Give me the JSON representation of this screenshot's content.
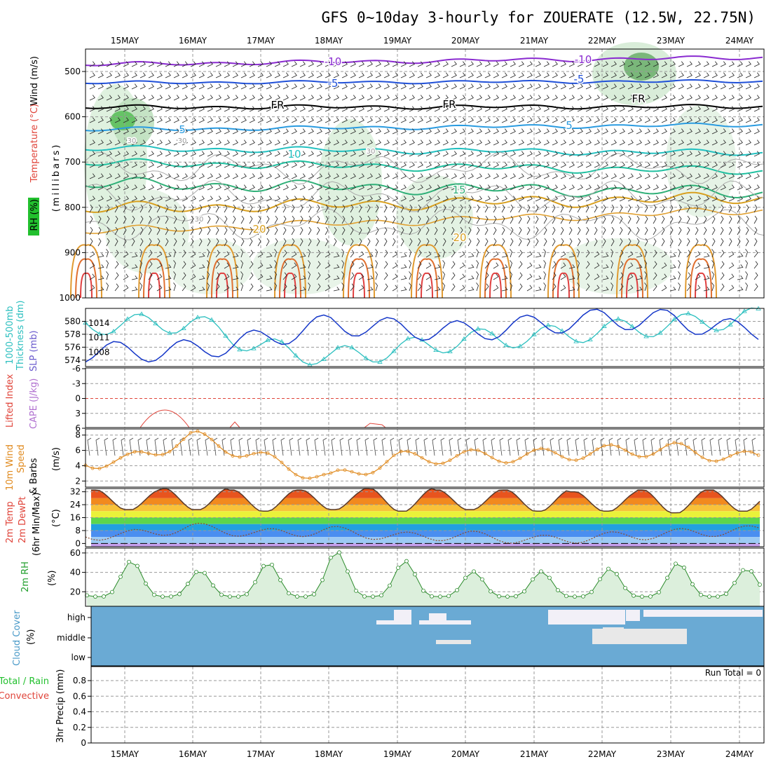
{
  "title": "GFS 0~10day 3-hourly for ZOUERATE (12.5W, 22.75N)",
  "dates": [
    "15MAY",
    "16MAY",
    "17MAY",
    "18MAY",
    "19MAY",
    "20MAY",
    "21MAY",
    "22MAY",
    "23MAY",
    "24MAY"
  ],
  "colors": {
    "temp_red": "#e0443a",
    "rh_green": "#22c02e",
    "thickness_cyan": "#2bbfbf",
    "slp_blue": "#1436c8",
    "cape_purple": "#b070d0",
    "wind_orange": "#e08a1e",
    "cloud_blue": "#6aaad4",
    "frz_black": "#000000"
  },
  "panels": {
    "upper": {
      "ylabel_lines": [
        "Wind (m/s)",
        "Temperature (°C)",
        "RH (%)"
      ],
      "yaxis_title": "(millibars)",
      "ticks": [
        "500",
        "600",
        "700",
        "800",
        "900",
        "1000"
      ],
      "contour_labels": [
        "-10",
        "-5",
        "FR",
        "5",
        "10",
        "15",
        "20",
        "30"
      ]
    },
    "thickness": {
      "ylabel_lines": [
        "1000-500mb",
        "Thickness (dm)",
        "SLP (mb)"
      ],
      "left_ticks": [
        "580",
        "578",
        "576",
        "574"
      ],
      "right_ticks": [
        "1014",
        "1011",
        "1008"
      ]
    },
    "cape": {
      "ylabel_lines": [
        "Lifted Index",
        "CAPE (J/kg)"
      ],
      "ticks": [
        "-6",
        "-3",
        "0",
        "3",
        "6"
      ]
    },
    "wind10": {
      "ylabel_lines": [
        "10m Wind",
        "Speed",
        "& Barbs",
        "(m/s)"
      ],
      "ticks": [
        "8",
        "6",
        "4",
        "2"
      ]
    },
    "temp": {
      "ylabel_lines": [
        "2m Temp",
        "2m DewPt",
        "(6hr Min/Max)",
        "(°C)"
      ],
      "ticks": [
        "32",
        "24",
        "16",
        "8",
        "0"
      ]
    },
    "rh": {
      "ylabel_lines": [
        "2m RH",
        "(%)"
      ],
      "ticks": [
        "60",
        "40",
        "20"
      ]
    },
    "cloud": {
      "ylabel_lines": [
        "Cloud Cover",
        "(%)"
      ],
      "levels": [
        "high",
        "middle",
        "low"
      ]
    },
    "precip": {
      "ylabel_lines": [
        "Total / Rain",
        "Convective",
        "3hr Precip (mm)"
      ],
      "ticks": [
        "0.8",
        "0.6",
        "0.4",
        "0.2",
        "0"
      ],
      "run_total": "Run Total = 0"
    }
  },
  "chart_data": [
    {
      "type": "line",
      "title": "1000-500mb Thickness / SLP",
      "x": [
        "15MAY",
        "16MAY",
        "17MAY",
        "18MAY",
        "19MAY",
        "20MAY",
        "21MAY",
        "22MAY",
        "23MAY",
        "24MAY"
      ],
      "series": [
        {
          "name": "Thickness (dm)",
          "values": [
            579.5,
            579.8,
            576.0,
            574.4,
            575.6,
            577.2,
            577.6,
            578.6,
            579.4,
            580.5
          ]
        },
        {
          "name": "SLP (mb)",
          "values": [
            1008.0,
            1008.4,
            1010.6,
            1013.8,
            1012.8,
            1012.2,
            1013.6,
            1014.8,
            1014.6,
            1012.4
          ]
        }
      ]
    },
    {
      "type": "line",
      "title": "2m Temp",
      "x": [
        "15MAY",
        "16MAY",
        "17MAY",
        "18MAY",
        "19MAY",
        "20MAY",
        "21MAY",
        "22MAY",
        "23MAY",
        "24MAY"
      ],
      "series": [
        {
          "name": "Max",
          "values": [
            33,
            34,
            33,
            33,
            34,
            33,
            33,
            32,
            33,
            33
          ]
        },
        {
          "name": "Min",
          "values": [
            21,
            21,
            20,
            21,
            20,
            21,
            20,
            20,
            19,
            20
          ]
        },
        {
          "name": "DewPt",
          "values": [
            5,
            10,
            6,
            8,
            4,
            5,
            2,
            4,
            6,
            8
          ]
        }
      ],
      "ylim": [
        -2,
        34
      ]
    },
    {
      "type": "line",
      "title": "2m RH",
      "x": [
        "15MAY",
        "16MAY",
        "17MAY",
        "18MAY",
        "19MAY",
        "20MAY",
        "21MAY",
        "22MAY",
        "23MAY",
        "24MAY"
      ],
      "series": [
        {
          "name": "RH max",
          "values": [
            52,
            42,
            50,
            62,
            52,
            41,
            41,
            44,
            50,
            44
          ]
        }
      ],
      "ylim": [
        5,
        65
      ]
    },
    {
      "type": "line",
      "title": "10m Wind Speed",
      "x": [
        "15MAY",
        "16MAY",
        "17MAY",
        "18MAY",
        "19MAY",
        "20MAY",
        "21MAY",
        "22MAY",
        "23MAY",
        "24MAY"
      ],
      "series": [
        {
          "name": "Speed",
          "values": [
            4.5,
            7.8,
            5.0,
            2.2,
            5.0,
            5.2,
            5.3,
            5.8,
            6.2,
            5.0
          ]
        }
      ],
      "ylim": [
        1.5,
        8.5
      ]
    }
  ]
}
